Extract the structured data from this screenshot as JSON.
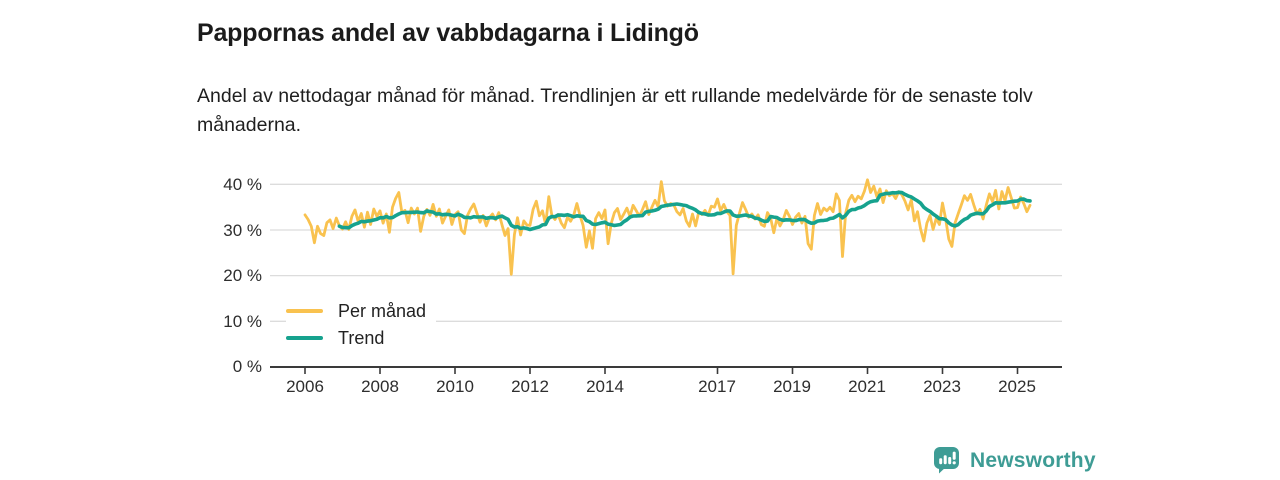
{
  "title": "Pappornas andel av vabbdagarna i Lidingö",
  "subtitle": "Andel av nettodagar månad för månad. Trendlinjen är ett rullande medelvärde för de senaste tolv månaderna.",
  "footer": {
    "brand": "Newsworthy",
    "logo_icon": "bar-chart-speech-bubble-icon"
  },
  "colors": {
    "per_month_line": "#F9C24F",
    "trend_line": "#16A28E",
    "brand_teal": "#3E9C95",
    "grid": "#DCDCDC",
    "axis": "#3A3A3A",
    "text": "#1B1B1B"
  },
  "chart_data": {
    "type": "line",
    "title": "Pappornas andel av vabbdagarna i Lidingö",
    "unit": "%",
    "x_start_year": 2006,
    "x_start_month": 1,
    "x_end_year": 2025,
    "x_end_month": 5,
    "points_per_year": 12,
    "x_tick_years": [
      2006,
      2008,
      2010,
      2012,
      2014,
      2017,
      2019,
      2021,
      2023,
      2025
    ],
    "x_tick_labels": [
      "2006",
      "2008",
      "2010",
      "2012",
      "2014",
      "2017",
      "2019",
      "2021",
      "2023",
      "2025"
    ],
    "y_ticks": [
      0,
      10,
      20,
      30,
      40
    ],
    "y_tick_labels": [
      "0 %",
      "10 %",
      "20 %",
      "30 %",
      "40 %"
    ],
    "ylim": [
      0,
      43
    ],
    "grid": true,
    "legend_position": "inside-left-bottom",
    "legend": [
      {
        "label": "Per månad",
        "series": "per_manad"
      },
      {
        "label": "Trend",
        "series": "trend"
      }
    ],
    "series": [
      {
        "name": "Per månad",
        "values": [
          33.3,
          32.3,
          30.8,
          27.2,
          30.8,
          29.2,
          28.8,
          31.6,
          32.2,
          30.3,
          32.6,
          30.9,
          30.2,
          31.8,
          30.1,
          33.0,
          34.4,
          31.9,
          33.6,
          30.6,
          33.9,
          31.2,
          34.6,
          33.0,
          34.2,
          31.5,
          33.5,
          29.5,
          35.0,
          36.9,
          38.2,
          33.8,
          34.3,
          31.6,
          34.8,
          33.5,
          34.8,
          29.7,
          33.0,
          34.5,
          33.2,
          35.6,
          33.0,
          34.6,
          31.5,
          33.0,
          34.4,
          31.2,
          33.4,
          34.0,
          30.0,
          29.2,
          33.2,
          34.6,
          35.7,
          33.7,
          31.7,
          33.2,
          30.9,
          32.7,
          33.5,
          32.2,
          33.8,
          31.2,
          28.8,
          30.3,
          20.3,
          29.0,
          32.7,
          28.9,
          32.0,
          31.1,
          31.0,
          34.5,
          36.3,
          33.1,
          34.2,
          31.2,
          37.3,
          33.1,
          32.3,
          33.4,
          31.5,
          30.5,
          32.8,
          31.9,
          33.3,
          35.8,
          33.2,
          31.0,
          26.2,
          29.8,
          26.0,
          32.5,
          33.8,
          32.5,
          34.4,
          27.0,
          31.5,
          33.8,
          34.7,
          32.3,
          33.5,
          34.8,
          33.0,
          35.4,
          34.2,
          33.0,
          34.5,
          36.2,
          33.4,
          35.0,
          36.5,
          35.1,
          40.6,
          36.4,
          35.2,
          35.8,
          35.5,
          34.0,
          33.3,
          34.7,
          32.0,
          30.8,
          33.5,
          30.9,
          34.0,
          33.4,
          34.3,
          33.2,
          35.2,
          35.0,
          36.8,
          34.2,
          35.6,
          34.0,
          33.2,
          20.4,
          31.0,
          33.6,
          36.0,
          34.5,
          32.8,
          33.5,
          32.4,
          33.3,
          31.2,
          30.8,
          33.8,
          32.6,
          29.4,
          32.5,
          30.9,
          32.2,
          34.3,
          33.0,
          31.2,
          32.8,
          33.6,
          31.5,
          33.0,
          27.0,
          25.8,
          33.2,
          35.8,
          33.4,
          34.8,
          34.2,
          35.0,
          34.0,
          37.9,
          36.5,
          24.2,
          33.6,
          36.5,
          37.6,
          36.2,
          37.4,
          36.8,
          38.5,
          41.0,
          38.2,
          39.6,
          37.3,
          39.0,
          36.0,
          38.6,
          37.5,
          38.0,
          36.9,
          38.4,
          37.7,
          36.3,
          34.4,
          36.6,
          32.0,
          34.0,
          30.2,
          27.6,
          31.5,
          33.2,
          30.1,
          32.6,
          31.2,
          35.9,
          32.5,
          28.0,
          26.4,
          31.5,
          33.5,
          35.5,
          37.5,
          36.5,
          37.8,
          35.5,
          33.5,
          34.5,
          32.4,
          35.5,
          37.9,
          36.2,
          38.7,
          34.6,
          38.4,
          36.4,
          39.3,
          37.0,
          34.8,
          34.9,
          37.2,
          35.8,
          34.0,
          35.4
        ]
      },
      {
        "name": "Trend",
        "derived": "rolling_mean",
        "window": 12
      }
    ]
  }
}
